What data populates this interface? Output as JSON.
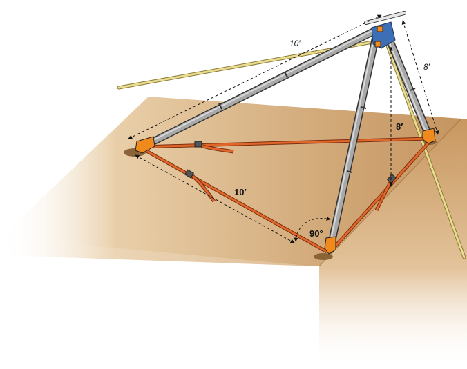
{
  "labels": {
    "leg_length_top": "10′",
    "leg_length_side": "8′",
    "vertical_height": "8′",
    "ground_distance": "10′",
    "angle": "90°"
  },
  "colors": {
    "ground_top": "#c89e6c",
    "ground_side": "#b98a57",
    "leg_metal": "#9a9a9a",
    "leg_dark": "#444444",
    "strap": "#d95a1e",
    "pole": "#e8d98a",
    "head_blue": "#3d6fb6",
    "foot_orange": "#f08a1c"
  },
  "icons": {
    "anchor_strap": "strap-icon",
    "tripod_head": "tripod-head-icon"
  }
}
